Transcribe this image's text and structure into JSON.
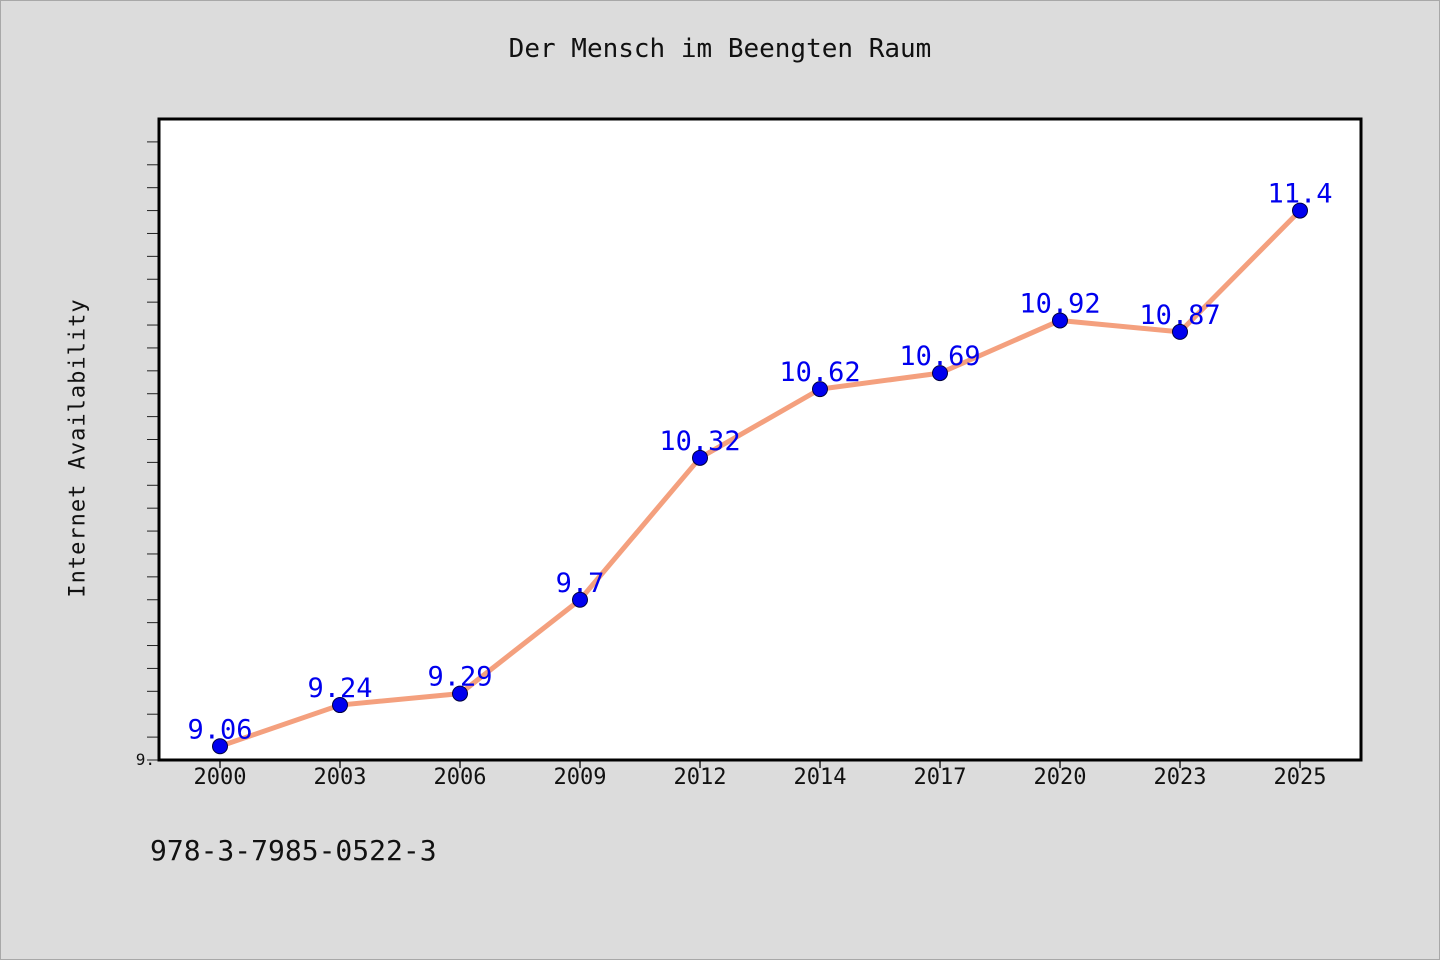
{
  "chart_data": {
    "type": "line",
    "title": "Der Mensch im Beengten Raum",
    "xlabel": "",
    "ylabel": "Internet Availability",
    "categories": [
      "2000",
      "2003",
      "2006",
      "2009",
      "2012",
      "2014",
      "2017",
      "2020",
      "2023",
      "2025"
    ],
    "series": [
      {
        "values": [
          9.06,
          9.24,
          9.29,
          9.7,
          10.32,
          10.62,
          10.69,
          10.92,
          10.87,
          11.4
        ],
        "data_labels": [
          "9.06",
          "9.24",
          "9.29",
          "9.7",
          "10.32",
          "10.62",
          "10.69",
          "10.92",
          "10.87",
          "11.4"
        ]
      }
    ],
    "ylim": [
      9.0,
      11.8
    ],
    "y_tick_labels": [
      "9."
    ],
    "grid": false,
    "legend": "none",
    "line_color": "#f4a07e",
    "marker_color": "#0000ee",
    "label_color": "#0000ee"
  },
  "footer": {
    "isbn": "978-3-7985-0522-3"
  }
}
